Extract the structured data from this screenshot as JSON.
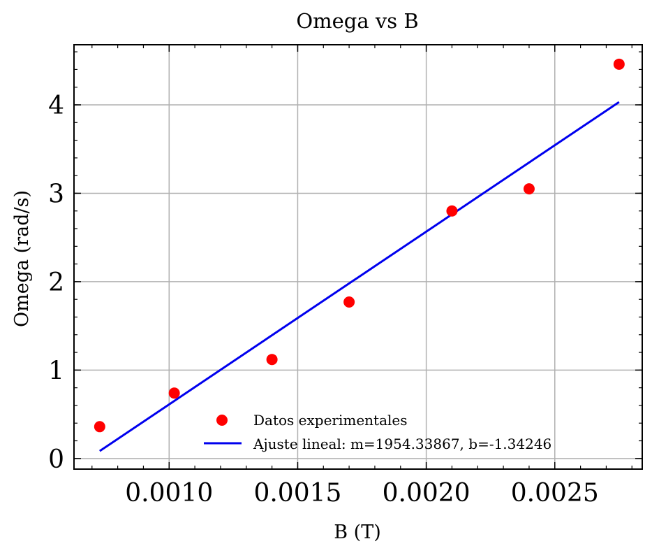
{
  "chart_data": {
    "type": "scatter",
    "title": "Omega vs B",
    "xlabel": "B (T)",
    "ylabel": "Omega (rad/s)",
    "xlim": [
      0.00063,
      0.00284
    ],
    "ylim": [
      -0.12,
      4.68
    ],
    "xticks": [
      0.001,
      0.0015,
      0.002,
      0.0025
    ],
    "xtick_labels": [
      "0.0010",
      "0.0015",
      "0.0020",
      "0.0025"
    ],
    "yticks": [
      0,
      1,
      2,
      3,
      4
    ],
    "ytick_labels": [
      "0",
      "1",
      "2",
      "3",
      "4"
    ],
    "grid": true,
    "legend_position": "lower-right",
    "series": [
      {
        "name": "Datos experimentales",
        "kind": "scatter",
        "color": "#ff0000",
        "x": [
          0.00073,
          0.00102,
          0.0014,
          0.0017,
          0.0021,
          0.0024,
          0.00275
        ],
        "y": [
          0.36,
          0.74,
          1.12,
          1.77,
          2.8,
          3.05,
          4.46
        ]
      },
      {
        "name": "Ajuste lineal: m=1954.33867, b=-1.34246",
        "kind": "line",
        "color": "#0000ee",
        "slope": 1954.33867,
        "intercept": -1.34246,
        "x": [
          0.00073,
          0.00275
        ]
      }
    ]
  }
}
